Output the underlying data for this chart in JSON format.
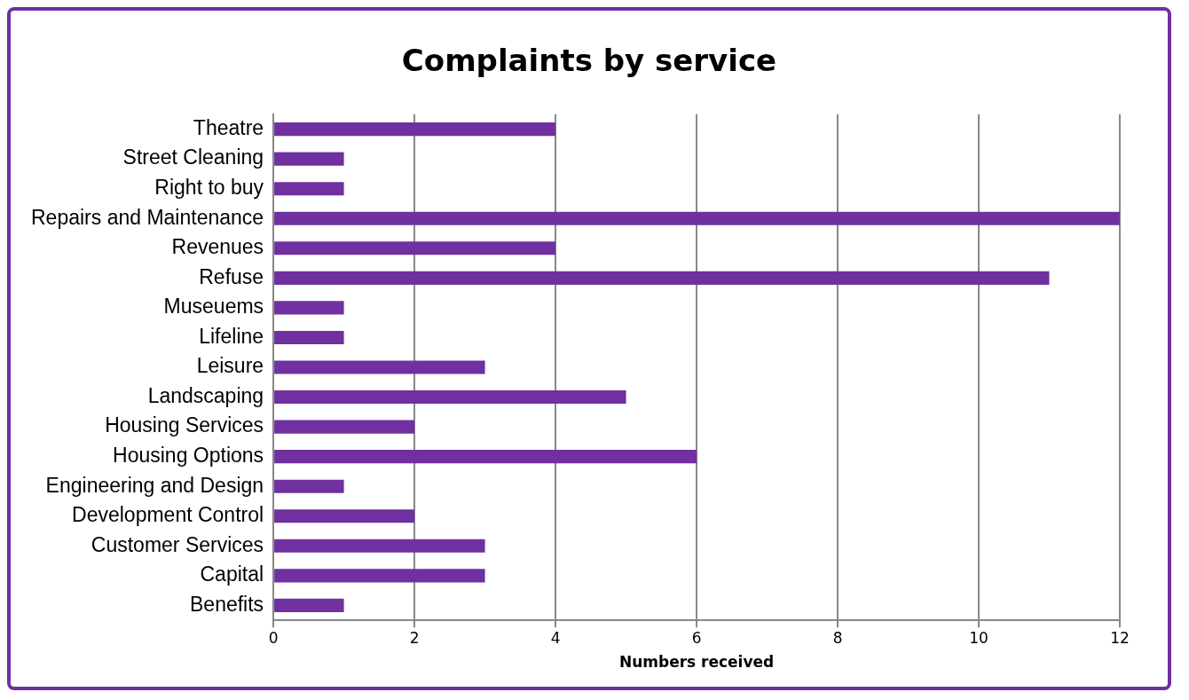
{
  "chart_data": {
    "type": "bar",
    "orientation": "horizontal",
    "title": "Complaints by service",
    "xlabel": "Numbers received",
    "categories": [
      "Theatre",
      "Street Cleaning",
      "Right to buy",
      "Repairs and Maintenance",
      "Revenues",
      "Refuse",
      "Museuems",
      "Lifeline",
      "Leisure",
      "Landscaping",
      "Housing Services",
      "Housing Options",
      "Engineering and Design",
      "Development Control",
      "Customer Services",
      "Capital",
      "Benefits"
    ],
    "values": [
      4,
      1,
      1,
      12,
      4,
      11,
      1,
      1,
      3,
      5,
      2,
      6,
      1,
      2,
      3,
      3,
      1
    ],
    "color": "#7030a0",
    "xlim": [
      0,
      12
    ],
    "xticks": [
      0,
      2,
      4,
      6,
      8,
      10,
      12
    ],
    "grid": "x",
    "legend": false
  }
}
